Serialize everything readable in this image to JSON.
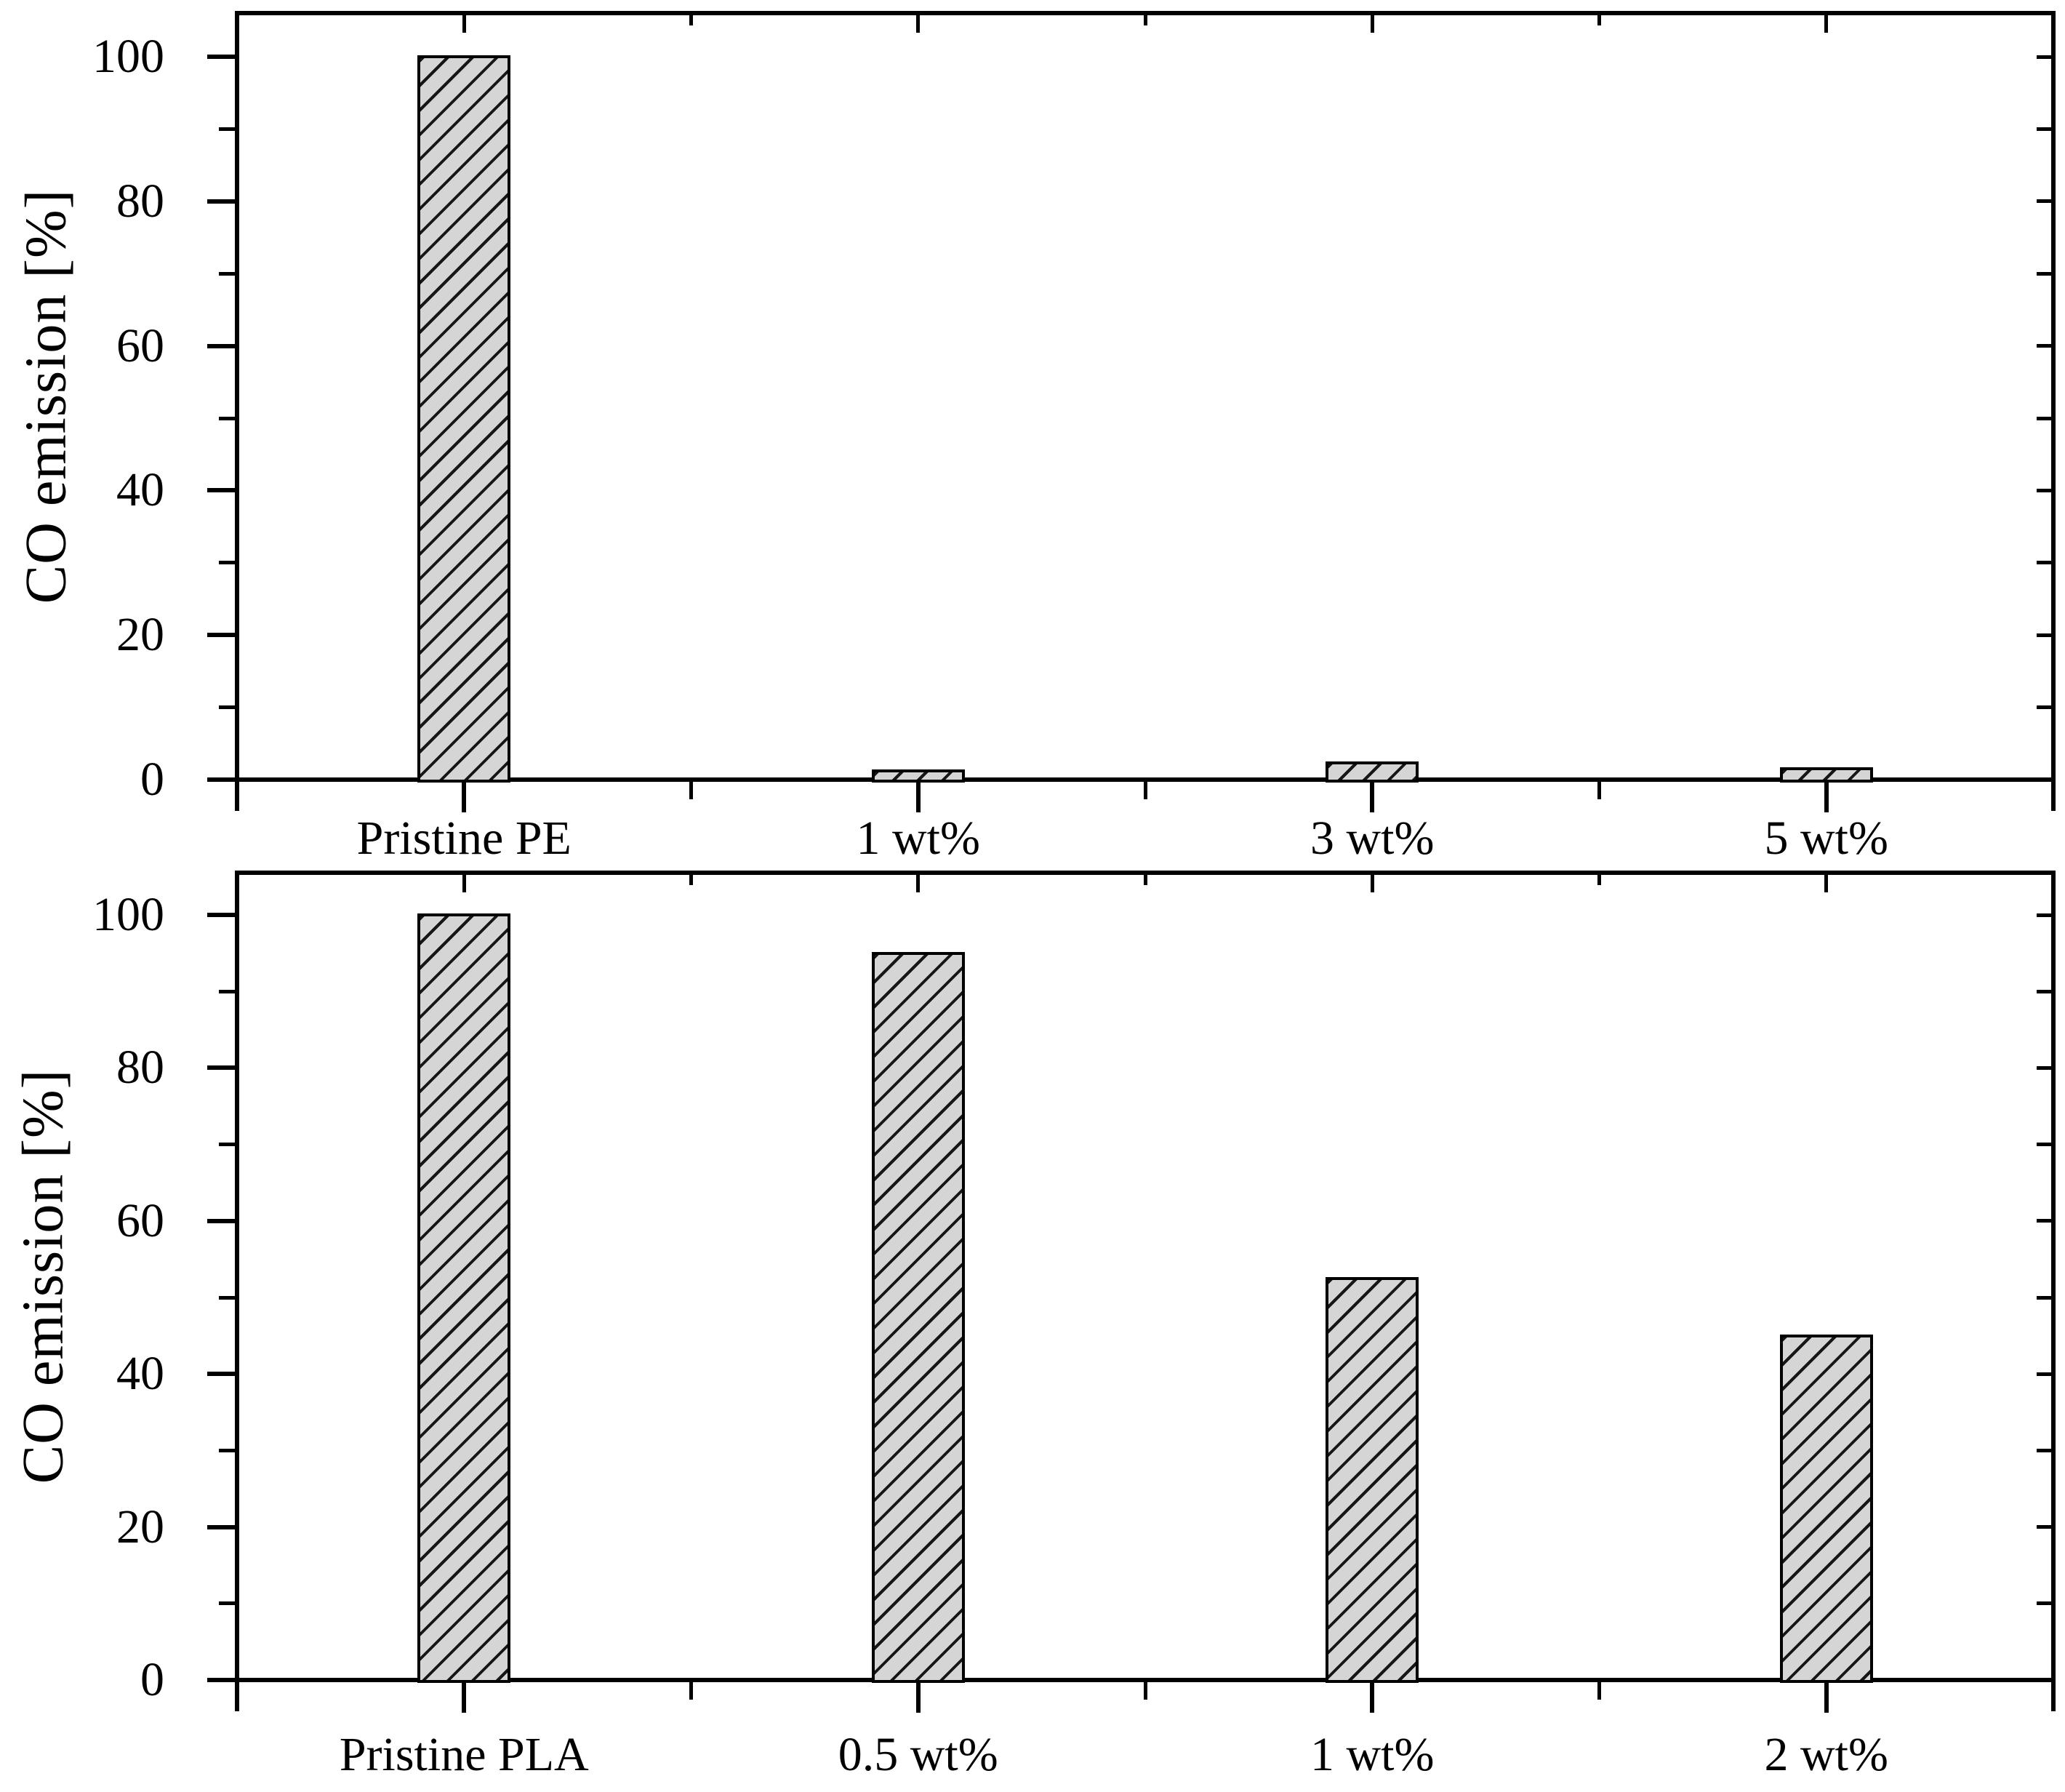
{
  "figure": {
    "background_color": "#ffffff",
    "axis_color": "#000000",
    "bar_fill_color": "#d5d5d5",
    "bar_hatch_color": "#161616",
    "bar_hatch_style": "forward-diagonal-lines",
    "font_style": "serif"
  },
  "chart_data": [
    {
      "type": "bar",
      "panel": "top",
      "title": "",
      "xlabel": "",
      "ylabel": "CO emission [%]",
      "categories": [
        "Pristine PE",
        "1 wt%",
        "3 wt%",
        "5 wt%"
      ],
      "values": [
        100,
        1.2,
        2.3,
        1.5
      ],
      "ylim": [
        0,
        105
      ],
      "yticks_major": [
        0,
        20,
        40,
        60,
        80,
        100
      ],
      "yticks_minor_step": 10,
      "grid": false,
      "legend": "none"
    },
    {
      "type": "bar",
      "panel": "bottom",
      "title": "",
      "xlabel": "",
      "ylabel": "CO emission [%]",
      "categories": [
        "Pristine PLA",
        "0.5 wt%",
        "1 wt%",
        "2 wt%"
      ],
      "values": [
        100,
        95,
        52.5,
        45
      ],
      "ylim": [
        0,
        105
      ],
      "yticks_major": [
        0,
        20,
        40,
        60,
        80,
        100
      ],
      "yticks_minor_step": 10,
      "grid": false,
      "legend": "none"
    }
  ]
}
